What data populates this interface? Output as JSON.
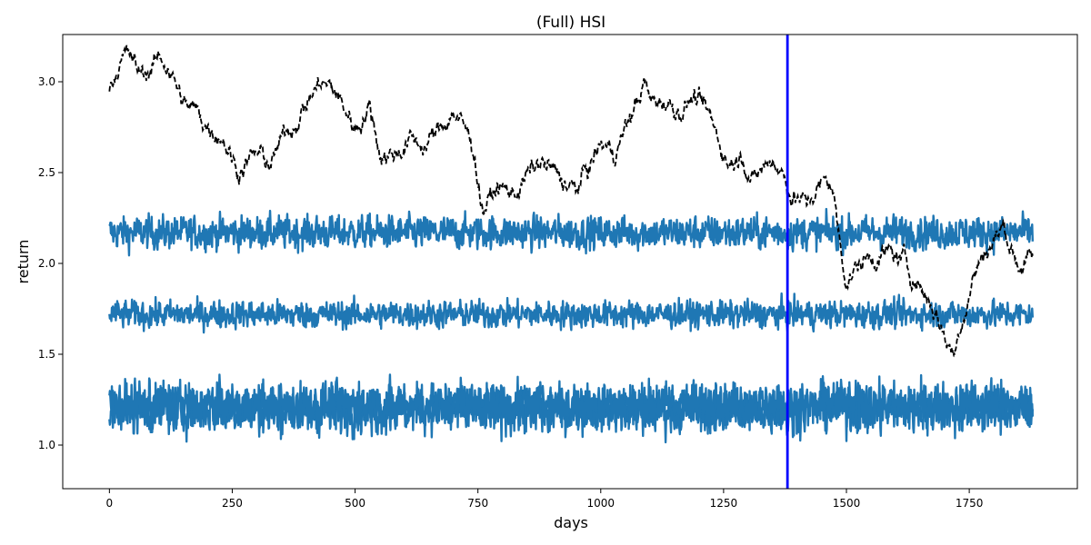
{
  "chart_data": {
    "type": "line",
    "title": "(Full) HSI",
    "xlabel": "days",
    "ylabel": "return",
    "xlim": [
      -95,
      1970
    ],
    "ylim": [
      0.76,
      3.26
    ],
    "x_ticks": [
      0,
      250,
      500,
      750,
      1000,
      1250,
      1500,
      1750
    ],
    "y_ticks": [
      1.0,
      1.5,
      2.0,
      2.5,
      3.0
    ],
    "x_tick_labels": [
      "0",
      "250",
      "500",
      "750",
      "1000",
      "1250",
      "1500",
      "1750"
    ],
    "y_tick_labels": [
      "1.0",
      "1.5",
      "2.0",
      "2.5",
      "3.0"
    ],
    "grid": false,
    "legend": "none",
    "n_points": 1880,
    "vertical_line": {
      "x": 1380,
      "color": "#0000ff"
    },
    "series": [
      {
        "style": "dashed",
        "color": "#000000",
        "anchors_x": [
          0,
          20,
          40,
          60,
          80,
          100,
          120,
          150,
          180,
          200,
          230,
          260,
          300,
          330,
          360,
          400,
          430,
          460,
          500,
          530,
          550,
          580,
          610,
          640,
          670,
          700,
          720,
          740,
          760,
          790,
          820,
          850,
          880,
          910,
          950,
          980,
          1000,
          1030,
          1060,
          1090,
          1100,
          1130,
          1160,
          1190,
          1220,
          1250,
          1260,
          1290,
          1310,
          1330,
          1350,
          1370,
          1390,
          1420,
          1440,
          1470,
          1490,
          1500,
          1530,
          1560,
          1590,
          1620,
          1650,
          1680,
          1700,
          1720,
          1730,
          1760,
          1790,
          1820,
          1850,
          1879
        ],
        "anchors_y": [
          2.96,
          3.12,
          3.15,
          3.04,
          3.07,
          3.12,
          3.1,
          2.88,
          2.82,
          2.76,
          2.72,
          2.52,
          2.6,
          2.55,
          2.72,
          2.88,
          3.0,
          2.94,
          2.75,
          2.87,
          2.62,
          2.6,
          2.68,
          2.65,
          2.72,
          2.85,
          2.75,
          2.65,
          2.3,
          2.42,
          2.38,
          2.48,
          2.55,
          2.48,
          2.4,
          2.55,
          2.65,
          2.62,
          2.8,
          3.0,
          2.88,
          2.9,
          2.85,
          2.92,
          2.8,
          2.62,
          2.55,
          2.62,
          2.45,
          2.52,
          2.58,
          2.5,
          2.38,
          2.32,
          2.42,
          2.45,
          2.05,
          1.92,
          2.0,
          2.05,
          2.05,
          2.0,
          1.88,
          1.75,
          1.6,
          1.5,
          1.65,
          1.95,
          2.1,
          2.2,
          2.0,
          2.02
        ],
        "noise": 0.035
      },
      {
        "style": "solid",
        "color": "#1f77b4",
        "center": 2.17,
        "amplitude": 0.055
      },
      {
        "style": "solid",
        "color": "#1f77b4",
        "center": 1.72,
        "amplitude": 0.045
      },
      {
        "style": "solid",
        "color": "#1f77b4",
        "center": 1.2,
        "amplitude": 0.08
      },
      {
        "style": "solid",
        "color": "#1f77b4",
        "center": 1.22,
        "amplitude": 0.075
      }
    ]
  }
}
